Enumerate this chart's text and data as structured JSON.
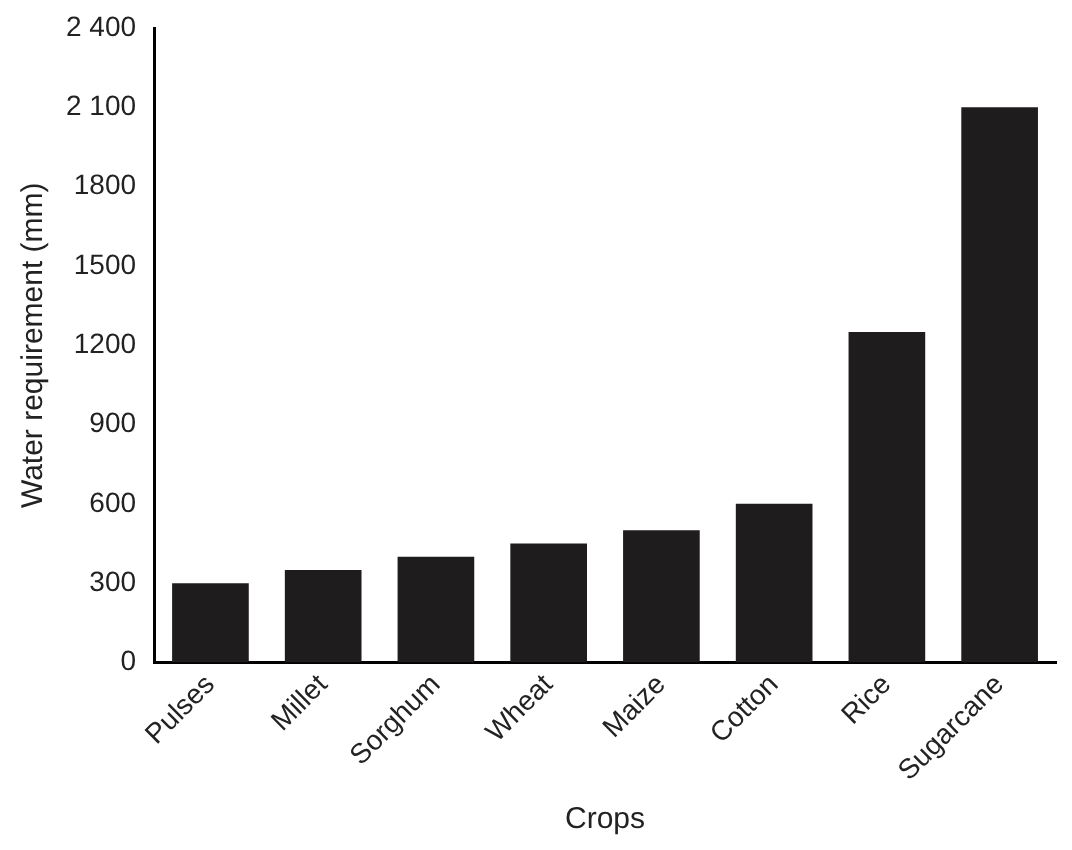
{
  "chart_data": {
    "type": "bar",
    "xlabel": "Crops",
    "ylabel": "Water requirement (mm)",
    "categories": [
      "Pulses",
      "Millet",
      "Sorghum",
      "Wheat",
      "Maize",
      "Cotton",
      "Rice",
      "Sugarcane"
    ],
    "values": [
      300,
      350,
      400,
      450,
      500,
      600,
      1250,
      2100
    ],
    "color": "#1f1c1d",
    "ylim": [
      0,
      2400
    ],
    "yticks": [
      0,
      300,
      600,
      900,
      1200,
      1500,
      1800,
      {
        "value": 2100,
        "label": "2 100"
      },
      {
        "value": 2400,
        "label": "2 400"
      }
    ],
    "grid": false,
    "legend": false
  }
}
